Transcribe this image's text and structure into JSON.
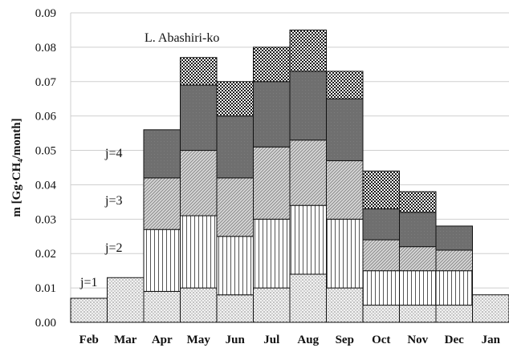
{
  "chart_data": {
    "type": "bar",
    "stacked": true,
    "title": "",
    "xlabel": "",
    "ylabel": "m [Gg·CH₄/month]",
    "ylim": [
      0,
      0.09
    ],
    "yticks": [
      "0.00",
      "0.01",
      "0.02",
      "0.03",
      "0.04",
      "0.05",
      "0.06",
      "0.07",
      "0.08",
      "0.09"
    ],
    "ytick_values": [
      0,
      0.01,
      0.02,
      0.03,
      0.04,
      0.05,
      0.06,
      0.07,
      0.08,
      0.09
    ],
    "grid": "horizontal",
    "categories": [
      "Feb",
      "Mar",
      "Apr",
      "May",
      "Jun",
      "Jul",
      "Aug",
      "Sep",
      "Oct",
      "Nov",
      "Dec",
      "Jan"
    ],
    "series": [
      {
        "name": "j=1",
        "pattern": "fine-dots",
        "values": [
          0.007,
          0.013,
          0.009,
          0.01,
          0.008,
          0.01,
          0.014,
          0.01,
          0.005,
          0.005,
          0.005,
          0.008
        ]
      },
      {
        "name": "j=2",
        "pattern": "vertical-lines",
        "values": [
          0,
          0,
          0.018,
          0.021,
          0.017,
          0.02,
          0.02,
          0.02,
          0.01,
          0.01,
          0.01,
          0
        ]
      },
      {
        "name": "j=3",
        "pattern": "diagonal-lines",
        "values": [
          0,
          0,
          0.015,
          0.019,
          0.017,
          0.021,
          0.019,
          0.017,
          0.009,
          0.007,
          0.006,
          0
        ]
      },
      {
        "name": "j=4",
        "pattern": "dark-gray",
        "values": [
          0,
          0,
          0.014,
          0.019,
          0.018,
          0.019,
          0.02,
          0.018,
          0.009,
          0.01,
          0.007,
          0
        ]
      },
      {
        "name": "",
        "pattern": "checker",
        "values": [
          0,
          0,
          0,
          0.008,
          0.01,
          0.01,
          0.012,
          0.008,
          0.011,
          0.006,
          0,
          0
        ]
      }
    ],
    "annotations": [
      "L. Abashiri-ko",
      "j=4",
      "j=3",
      "j=2",
      "j=1"
    ]
  }
}
